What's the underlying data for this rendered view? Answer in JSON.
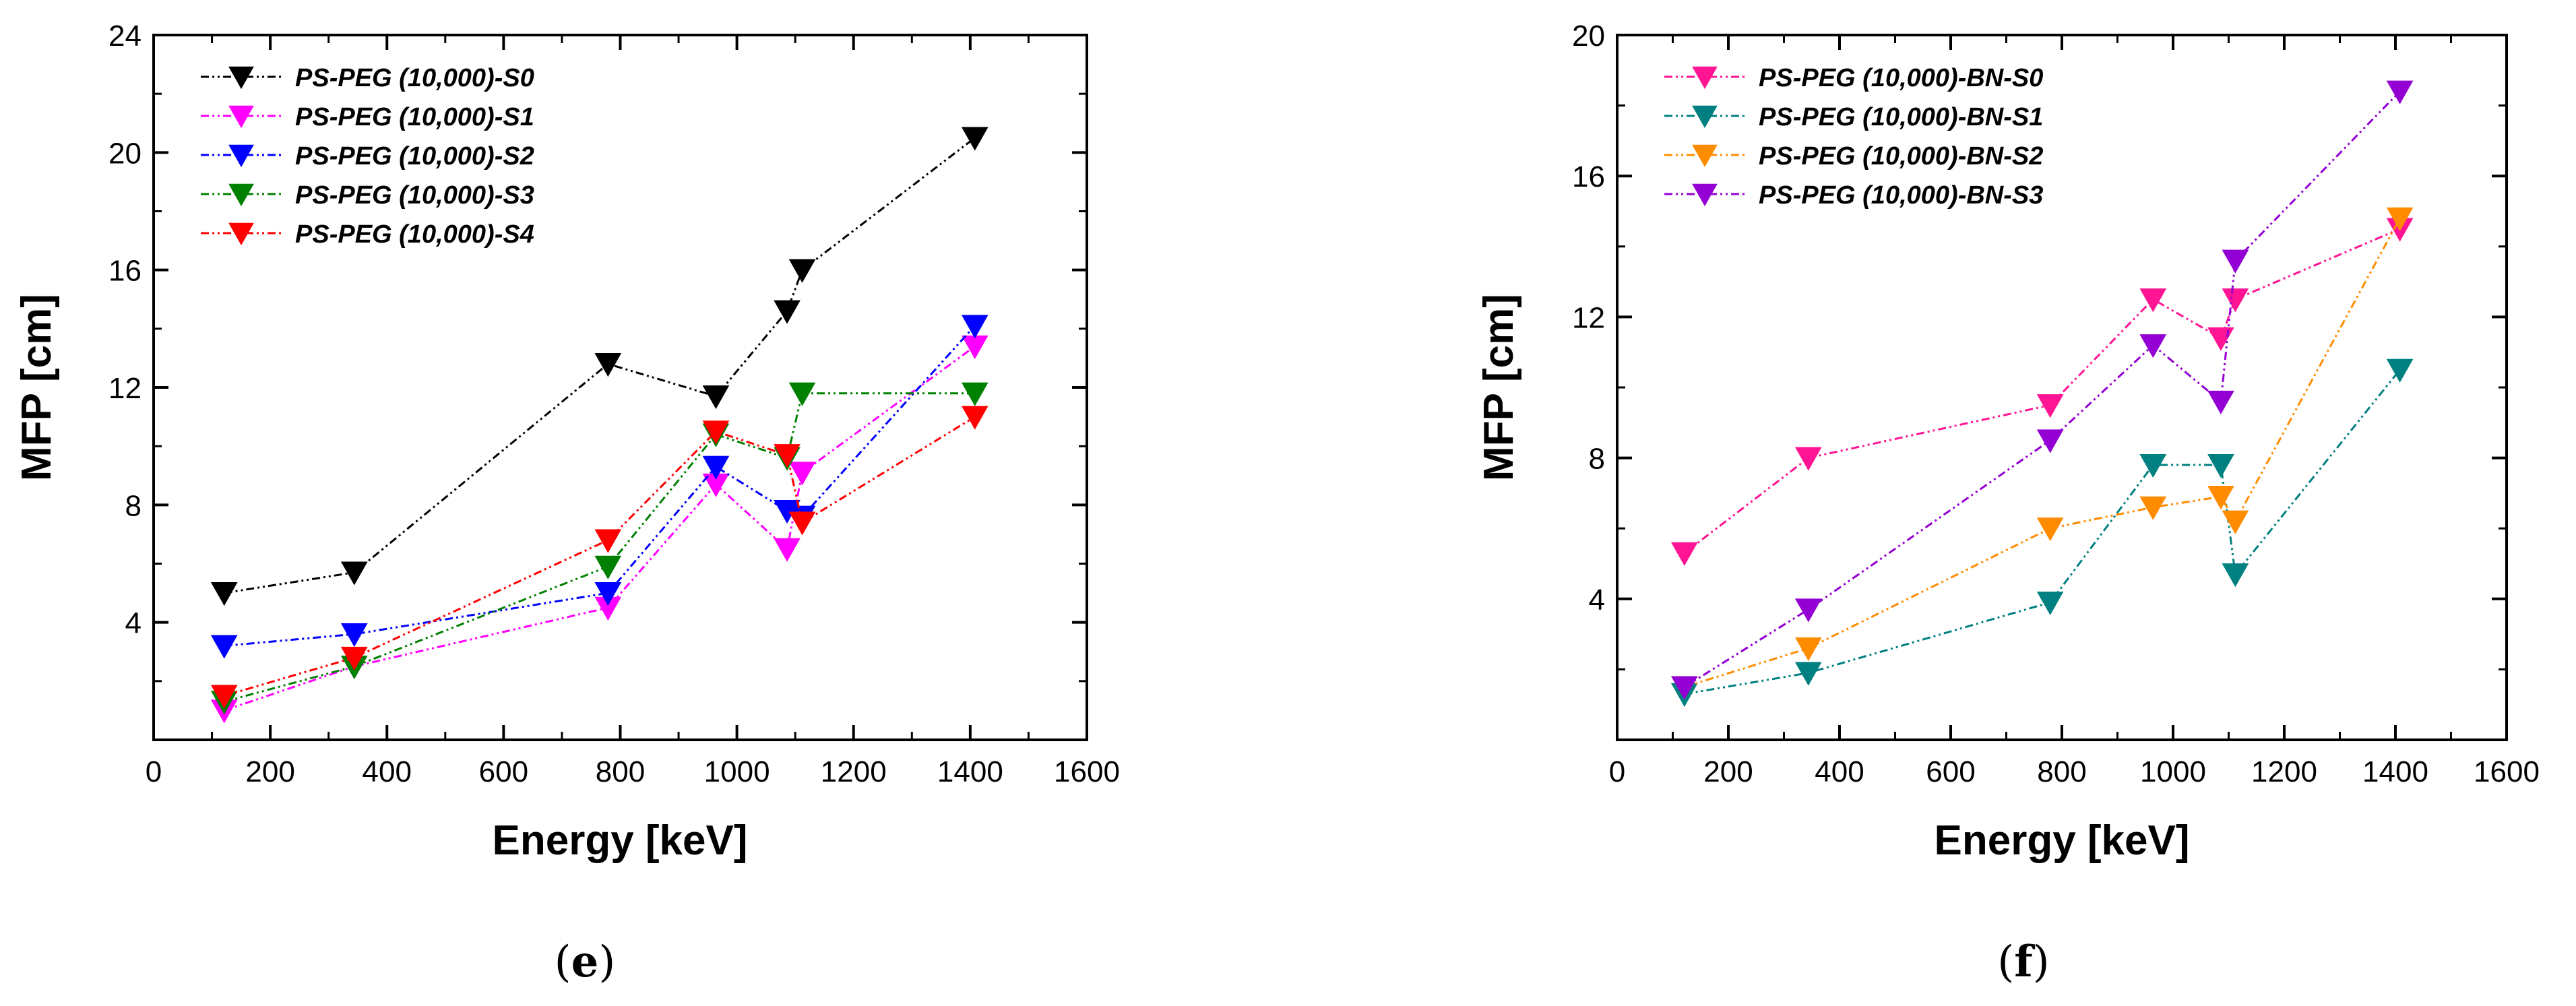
{
  "chart_data": [
    {
      "type": "line",
      "panel": "e",
      "caption": {
        "open": "(",
        "letter": "e",
        "close": ")"
      },
      "xlabel": "Energy [keV]",
      "ylabel": "MFP [cm]",
      "xlim": [
        0,
        1600
      ],
      "ylim": [
        0,
        24
      ],
      "xticks": [
        0,
        200,
        400,
        600,
        800,
        1000,
        1200,
        1400,
        1600
      ],
      "yticks": [
        4,
        8,
        12,
        16,
        20,
        24
      ],
      "legend_position": "top-left",
      "series": [
        {
          "name": "PS-PEG (10,000)-S0",
          "color": "#000000",
          "x": [
            121,
            344,
            779,
            964,
            1086,
            1112,
            1408
          ],
          "y": [
            5.0,
            5.7,
            12.8,
            11.7,
            14.6,
            16.0,
            20.5
          ]
        },
        {
          "name": "PS-PEG (10,000)-S1",
          "color": "#ff00ff",
          "x": [
            121,
            344,
            779,
            964,
            1086,
            1112,
            1408
          ],
          "y": [
            1.0,
            2.5,
            4.5,
            8.7,
            6.5,
            9.1,
            13.4
          ]
        },
        {
          "name": "PS-PEG (10,000)-S2",
          "color": "#0000ff",
          "x": [
            121,
            344,
            779,
            964,
            1086,
            1112,
            1408
          ],
          "y": [
            3.2,
            3.6,
            5.0,
            9.3,
            7.8,
            7.6,
            14.1
          ]
        },
        {
          "name": "PS-PEG (10,000)-S3",
          "color": "#008000",
          "x": [
            121,
            344,
            779,
            964,
            1086,
            1112,
            1408
          ],
          "y": [
            1.3,
            2.5,
            5.9,
            10.4,
            9.6,
            11.8,
            11.8
          ]
        },
        {
          "name": "PS-PEG (10,000)-S4",
          "color": "#ff0000",
          "x": [
            121,
            344,
            779,
            964,
            1086,
            1112,
            1408
          ],
          "y": [
            1.5,
            2.8,
            6.8,
            10.5,
            9.7,
            7.4,
            11.0
          ]
        }
      ]
    },
    {
      "type": "line",
      "panel": "f",
      "caption": {
        "open": "(",
        "letter": "f",
        "close": ")"
      },
      "xlabel": "Energy [keV]",
      "ylabel": "MFP [cm]",
      "xlim": [
        0,
        1600
      ],
      "ylim": [
        0,
        20
      ],
      "xticks": [
        0,
        200,
        400,
        600,
        800,
        1000,
        1200,
        1400,
        1600
      ],
      "yticks": [
        4,
        8,
        12,
        16,
        20
      ],
      "legend_position": "top-left",
      "series": [
        {
          "name": "PS-PEG (10,000)-BN-S0",
          "color": "#ff1493",
          "x": [
            121,
            344,
            779,
            964,
            1086,
            1112,
            1408
          ],
          "y": [
            5.3,
            8.0,
            9.5,
            12.5,
            11.4,
            12.5,
            14.5
          ]
        },
        {
          "name": "PS-PEG (10,000)-BN-S1",
          "color": "#008080",
          "x": [
            121,
            344,
            779,
            964,
            1086,
            1112,
            1408
          ],
          "y": [
            1.3,
            1.9,
            3.9,
            7.8,
            7.8,
            4.7,
            10.5
          ]
        },
        {
          "name": "PS-PEG (10,000)-BN-S2",
          "color": "#ff8c00",
          "x": [
            121,
            344,
            779,
            964,
            1086,
            1112,
            1408
          ],
          "y": [
            1.5,
            2.6,
            6.0,
            6.6,
            6.9,
            6.2,
            14.8
          ]
        },
        {
          "name": "PS-PEG (10,000)-BN-S3",
          "color": "#9400d3",
          "x": [
            121,
            344,
            779,
            964,
            1086,
            1112,
            1408
          ],
          "y": [
            1.5,
            3.7,
            8.5,
            11.2,
            9.6,
            13.6,
            18.4
          ]
        }
      ]
    }
  ]
}
